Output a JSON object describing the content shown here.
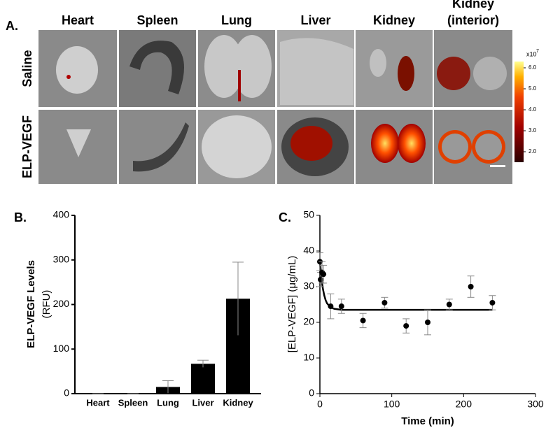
{
  "panel_a": {
    "label": "A.",
    "columns": [
      [
        "Heart"
      ],
      [
        "Spleen"
      ],
      [
        "Lung"
      ],
      [
        "Liver"
      ],
      [
        "Kidney"
      ],
      [
        "Kidney",
        "(interior)"
      ]
    ],
    "rows": [
      "Saline",
      "ELP-VEGF"
    ],
    "colorbar": {
      "lim": [
        1.5,
        6.3
      ],
      "ticks": [
        {
          "value": 6,
          "label": "6.0"
        },
        {
          "value": 5,
          "label": "5.0"
        },
        {
          "value": 4,
          "label": "4.0"
        },
        {
          "value": 3,
          "label": "3.0"
        },
        {
          "value": 2,
          "label": "2.0"
        }
      ],
      "unit": "x10",
      "exponent": "7"
    }
  },
  "chart_data": [
    {
      "type": "bar",
      "panel": "B.",
      "categories": [
        "Heart",
        "Spleen",
        "Lung",
        "Liver",
        "Kidney"
      ],
      "values": [
        0,
        0,
        15,
        67,
        213
      ],
      "errors": [
        0,
        0,
        14,
        8,
        82
      ],
      "color": "#000000",
      "ylabel": [
        "ELP-VEGF Levels",
        "(RFU)"
      ],
      "ylim": [
        0,
        400
      ],
      "yticks": [
        0,
        100,
        200,
        300,
        400
      ]
    },
    {
      "type": "scatter",
      "panel": "C.",
      "xlabel": "Time (min)",
      "ylabel": "[ELP-VEGF] (μg/mL)",
      "x": [
        0,
        1,
        3,
        5,
        15,
        30,
        60,
        90,
        120,
        150,
        180,
        210,
        240
      ],
      "values": [
        37,
        32,
        34,
        33.5,
        24.5,
        24.5,
        20.5,
        25.5,
        19,
        20,
        25,
        30,
        25.5
      ],
      "errors": [
        2.5,
        2,
        3,
        2.5,
        3.5,
        2,
        2,
        1.5,
        2,
        3.5,
        1.5,
        3,
        2
      ],
      "fit": {
        "x": [
          0,
          2,
          4,
          6,
          8,
          10,
          15,
          20,
          30,
          240
        ],
        "values": [
          37,
          32.6,
          29.6,
          27.6,
          26.2,
          25.3,
          24.2,
          23.8,
          23.5,
          23.5
        ]
      },
      "color": "#000000",
      "xlim": [
        0,
        300
      ],
      "xticks": [
        0,
        100,
        200,
        300
      ],
      "ylim": [
        0,
        50
      ],
      "yticks": [
        0,
        10,
        20,
        30,
        40,
        50
      ]
    }
  ]
}
